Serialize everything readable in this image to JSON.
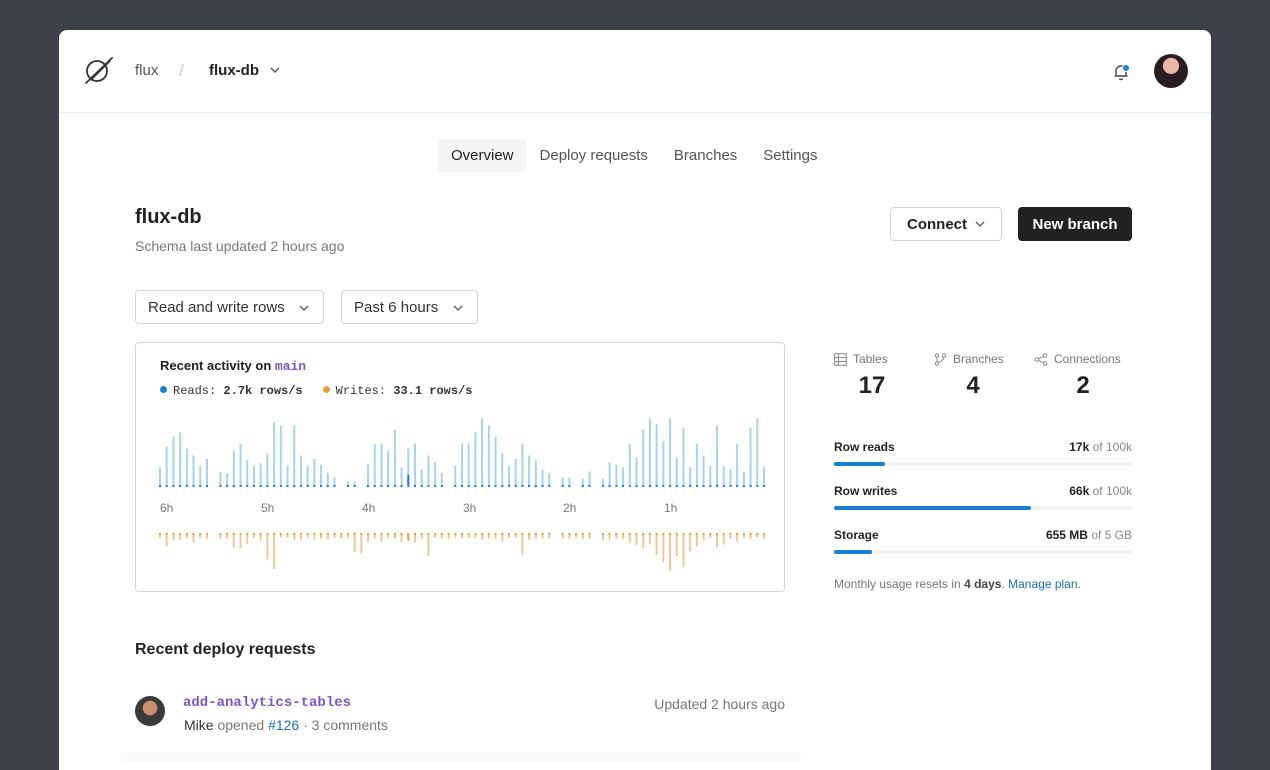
{
  "header": {
    "org": "flux",
    "separator": "/",
    "database": "flux-db",
    "icons": {
      "logo": "logo-icon",
      "chevron": "chevron-down-icon",
      "notifications": "bell-icon",
      "avatar": "user-avatar"
    },
    "colors": {
      "notification_dot": "#1a7fd0"
    }
  },
  "tabs": [
    {
      "label": "Overview",
      "active": true
    },
    {
      "label": "Deploy requests",
      "active": false
    },
    {
      "label": "Branches",
      "active": false
    },
    {
      "label": "Settings",
      "active": false
    }
  ],
  "page": {
    "title": "flux-db",
    "subtitle": "Schema last updated 2 hours ago",
    "connect_label": "Connect",
    "new_branch_label": "New branch"
  },
  "filters": {
    "metric": "Read and write rows",
    "range": "Past 6 hours"
  },
  "activity": {
    "title_prefix": "Recent activity on",
    "branch": "main",
    "reads_label": "Reads:",
    "reads_value": "2.7k rows/s",
    "writes_label": "Writes:",
    "writes_value": "33.1 rows/s",
    "colors": {
      "reads": "#1a7fd0",
      "reads_light": "#a9d3e6",
      "writes": "#e3a23b",
      "writes_light": "#ecc99b"
    }
  },
  "chart_data": {
    "type": "bar",
    "title": "Recent activity on main",
    "x_ticks": [
      "6h",
      "5h",
      "4h",
      "3h",
      "2h",
      "1h"
    ],
    "series": [
      {
        "name": "Reads",
        "values": [
          0.28,
          0.58,
          0.72,
          0.78,
          0.55,
          0.45,
          0.3,
          0.4,
          0.0,
          0.22,
          0.2,
          0.52,
          0.62,
          0.38,
          0.3,
          0.34,
          0.48,
          0.92,
          0.88,
          0.3,
          0.88,
          0.45,
          0.3,
          0.4,
          0.32,
          0.2,
          0.14,
          0.0,
          0.08,
          0.08,
          0.0,
          0.32,
          0.62,
          0.62,
          0.52,
          0.82,
          0.28,
          0.55,
          0.62,
          0.25,
          0.45,
          0.36,
          0.2,
          0.0,
          0.3,
          0.62,
          0.62,
          0.78,
          0.98,
          0.88,
          0.72,
          0.48,
          0.3,
          0.4,
          0.62,
          0.45,
          0.38,
          0.25,
          0.2,
          0.0,
          0.14,
          0.14,
          0.0,
          0.12,
          0.22,
          0.0,
          0.12,
          0.35,
          0.32,
          0.28,
          0.62,
          0.42,
          0.82,
          0.98,
          0.9,
          0.65,
          0.98,
          0.42,
          0.85,
          0.28,
          0.62,
          0.45,
          0.3,
          0.88,
          0.3,
          0.25,
          0.62,
          0.22,
          0.85,
          0.98,
          0.28
        ]
      },
      {
        "name": "Writes",
        "values": [
          0.1,
          0.28,
          0.14,
          0.14,
          0.12,
          0.2,
          0.1,
          0.12,
          0.0,
          0.12,
          0.12,
          0.3,
          0.32,
          0.22,
          0.1,
          0.16,
          0.55,
          0.75,
          0.1,
          0.1,
          0.14,
          0.16,
          0.1,
          0.14,
          0.12,
          0.14,
          0.1,
          0.12,
          0.1,
          0.4,
          0.42,
          0.18,
          0.12,
          0.18,
          0.1,
          0.12,
          0.18,
          0.16,
          0.2,
          0.12,
          0.48,
          0.1,
          0.12,
          0.12,
          0.1,
          0.12,
          0.1,
          0.1,
          0.14,
          0.12,
          0.12,
          0.18,
          0.1,
          0.1,
          0.46,
          0.14,
          0.12,
          0.12,
          0.12,
          0.0,
          0.12,
          0.12,
          0.1,
          0.12,
          0.12,
          0.0,
          0.16,
          0.14,
          0.12,
          0.12,
          0.2,
          0.26,
          0.32,
          0.24,
          0.45,
          0.62,
          0.78,
          0.48,
          0.7,
          0.38,
          0.28,
          0.16,
          0.1,
          0.3,
          0.24,
          0.12,
          0.18,
          0.1,
          0.12,
          0.1,
          0.12
        ]
      }
    ],
    "grid": false,
    "legend": "top-left"
  },
  "stats": [
    {
      "label": "Tables",
      "value": "17",
      "icon": "table-icon"
    },
    {
      "label": "Branches",
      "value": "4",
      "icon": "branch-icon"
    },
    {
      "label": "Connections",
      "value": "2",
      "icon": "connections-icon"
    }
  ],
  "usage": [
    {
      "label": "Row reads",
      "used": "17k",
      "of": "of 100k",
      "fraction": 0.17
    },
    {
      "label": "Row writes",
      "used": "66k",
      "of": "of 100k",
      "fraction": 0.66
    },
    {
      "label": "Storage",
      "used": "655 MB",
      "of": "of 5 GB",
      "fraction": 0.128
    }
  ],
  "usage_note": {
    "prefix": "Monthly usage resets in",
    "days": "4 days",
    "period": ".",
    "link": "Manage plan."
  },
  "deploy_section": {
    "title": "Recent deploy requests",
    "items": [
      {
        "branch": "add-analytics-tables",
        "author": "Mike",
        "action": "opened",
        "number": "#126",
        "comments": "· 3 comments",
        "updated": "Updated 2 hours ago"
      }
    ]
  }
}
